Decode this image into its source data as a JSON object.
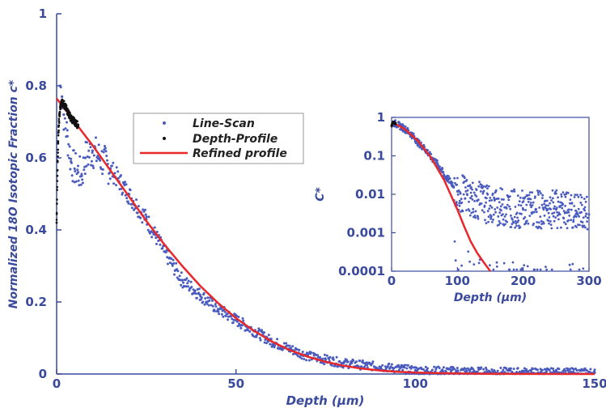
{
  "colors": {
    "line_scan": "#4a5bbf",
    "depth_profile": "#111111",
    "refined": "#e8282a",
    "axis_text": "#3a4a9c",
    "axis": "#3a4a9c"
  },
  "chart_data": [
    {
      "type": "scatter",
      "panel": "main",
      "xlabel": "Depth (μm)",
      "ylabel": "Normalized 18O Isotopic Fraction c*",
      "xlim": [
        0,
        150
      ],
      "ylim": [
        0,
        1
      ],
      "x_ticks": [
        "0",
        "50",
        "100",
        "150"
      ],
      "y_ticks": [
        "0",
        "0.2",
        "0.4",
        "0.6",
        "0.8",
        "1"
      ],
      "legend_position": "center-left",
      "series": [
        {
          "name": "Line-Scan",
          "style": "dots",
          "color": "#4a5bbf",
          "points": [
            [
              1,
              0.8
            ],
            [
              1.5,
              0.77
            ],
            [
              2,
              0.72
            ],
            [
              3,
              0.66
            ],
            [
              4,
              0.59
            ],
            [
              5,
              0.57
            ],
            [
              6,
              0.56
            ],
            [
              7,
              0.55
            ],
            [
              8,
              0.6
            ],
            [
              10,
              0.62
            ],
            [
              12,
              0.6
            ],
            [
              15,
              0.57
            ],
            [
              20,
              0.5
            ],
            [
              25,
              0.43
            ],
            [
              30,
              0.34
            ],
            [
              35,
              0.26
            ],
            [
              40,
              0.22
            ],
            [
              45,
              0.18
            ],
            [
              50,
              0.15
            ],
            [
              55,
              0.12
            ],
            [
              60,
              0.09
            ],
            [
              65,
              0.07
            ],
            [
              70,
              0.05
            ],
            [
              75,
              0.04
            ],
            [
              80,
              0.03
            ],
            [
              90,
              0.02
            ],
            [
              100,
              0.01
            ],
            [
              110,
              0.008
            ],
            [
              120,
              0.006
            ],
            [
              130,
              0.005
            ],
            [
              140,
              0.004
            ],
            [
              150,
              0.004
            ]
          ]
        },
        {
          "name": "Depth-Profile",
          "style": "dots",
          "color": "#111111",
          "points": [
            [
              0,
              0.42
            ],
            [
              0.2,
              0.55
            ],
            [
              0.4,
              0.64
            ],
            [
              0.6,
              0.69
            ],
            [
              0.8,
              0.72
            ],
            [
              1,
              0.74
            ],
            [
              1.5,
              0.755
            ],
            [
              2,
              0.75
            ],
            [
              2.5,
              0.74
            ],
            [
              3,
              0.73
            ],
            [
              3.5,
              0.72
            ],
            [
              4,
              0.71
            ],
            [
              5,
              0.7
            ],
            [
              6,
              0.69
            ]
          ]
        },
        {
          "name": "Refined profile",
          "style": "line",
          "color": "#e8282a",
          "points": [
            [
              0,
              0.765
            ],
            [
              5,
              0.7
            ],
            [
              10,
              0.635
            ],
            [
              15,
              0.565
            ],
            [
              20,
              0.495
            ],
            [
              25,
              0.425
            ],
            [
              30,
              0.36
            ],
            [
              35,
              0.3
            ],
            [
              40,
              0.245
            ],
            [
              45,
              0.197
            ],
            [
              50,
              0.155
            ],
            [
              55,
              0.12
            ],
            [
              60,
              0.09
            ],
            [
              65,
              0.066
            ],
            [
              70,
              0.048
            ],
            [
              75,
              0.034
            ],
            [
              80,
              0.023
            ],
            [
              85,
              0.015
            ],
            [
              90,
              0.01
            ],
            [
              95,
              0.006
            ],
            [
              100,
              0.004
            ],
            [
              110,
              0.0015
            ],
            [
              120,
              0.0005
            ],
            [
              150,
              0.0001
            ]
          ]
        }
      ]
    },
    {
      "type": "scatter",
      "panel": "inset",
      "xlabel": "Depth (μm)",
      "ylabel": "C*",
      "yscale": "log",
      "xlim": [
        0,
        300
      ],
      "ylim": [
        0.0001,
        1
      ],
      "x_ticks": [
        "0",
        "100",
        "200",
        "300"
      ],
      "y_ticks": [
        "0.0001",
        "0.001",
        "0.01",
        "0.1",
        "1"
      ],
      "series": [
        {
          "name": "Line-Scan",
          "style": "dots",
          "color": "#4a5bbf",
          "points": [
            [
              5,
              0.7
            ],
            [
              20,
              0.5
            ],
            [
              40,
              0.22
            ],
            [
              60,
              0.09
            ],
            [
              80,
              0.03
            ],
            [
              100,
              0.012
            ],
            [
              120,
              0.008
            ],
            [
              150,
              0.005
            ],
            [
              200,
              0.004
            ],
            [
              250,
              0.004
            ],
            [
              300,
              0.003
            ]
          ]
        },
        {
          "name": "Depth-Profile",
          "style": "dots",
          "color": "#111111",
          "points": [
            [
              0,
              0.6
            ],
            [
              2,
              0.75
            ],
            [
              4,
              0.72
            ],
            [
              6,
              0.69
            ]
          ]
        },
        {
          "name": "Refined profile",
          "style": "line",
          "color": "#e8282a",
          "points": [
            [
              0,
              0.765
            ],
            [
              20,
              0.495
            ],
            [
              40,
              0.245
            ],
            [
              60,
              0.09
            ],
            [
              80,
              0.023
            ],
            [
              100,
              0.004
            ],
            [
              110,
              0.0015
            ],
            [
              120,
              0.0006
            ],
            [
              130,
              0.0003
            ],
            [
              140,
              0.00017
            ],
            [
              150,
              0.0001
            ]
          ]
        }
      ]
    }
  ]
}
